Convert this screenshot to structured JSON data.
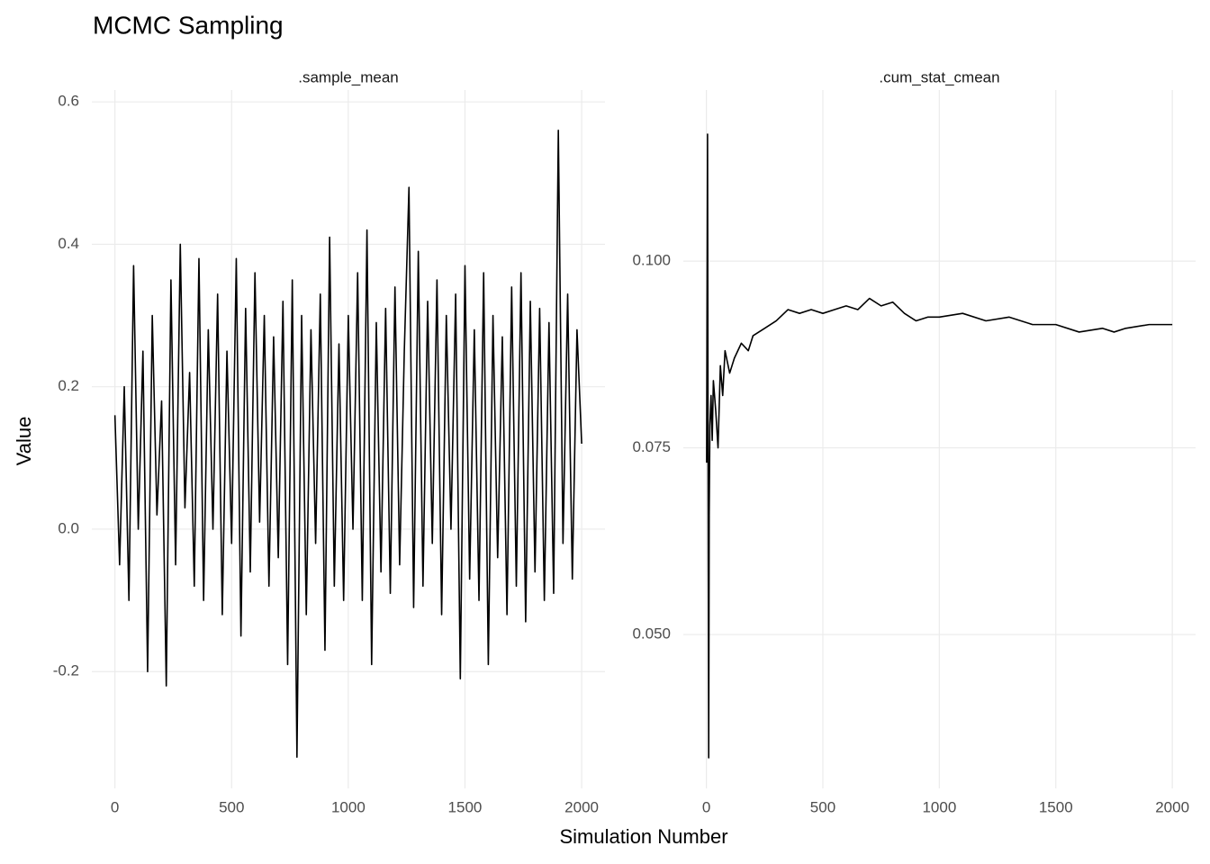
{
  "title": "MCMC Sampling",
  "x_label": "Simulation Number",
  "y_label": "Value",
  "chart_data": [
    {
      "type": "line",
      "title": ".sample_mean",
      "color": "#000000",
      "grid": true,
      "x": [
        0,
        20,
        40,
        60,
        80,
        100,
        120,
        140,
        160,
        180,
        200,
        220,
        240,
        260,
        280,
        300,
        320,
        340,
        360,
        380,
        400,
        420,
        440,
        460,
        480,
        500,
        520,
        540,
        560,
        580,
        600,
        620,
        640,
        660,
        680,
        700,
        720,
        740,
        760,
        780,
        800,
        820,
        840,
        860,
        880,
        900,
        920,
        940,
        960,
        980,
        1000,
        1020,
        1040,
        1060,
        1080,
        1100,
        1120,
        1140,
        1160,
        1180,
        1200,
        1220,
        1240,
        1260,
        1280,
        1300,
        1320,
        1340,
        1360,
        1380,
        1400,
        1420,
        1440,
        1460,
        1480,
        1500,
        1520,
        1540,
        1560,
        1580,
        1600,
        1620,
        1640,
        1660,
        1680,
        1700,
        1720,
        1740,
        1760,
        1780,
        1800,
        1820,
        1840,
        1860,
        1880,
        1900,
        1920,
        1940,
        1960,
        1980,
        2000
      ],
      "values": [
        0.16,
        -0.05,
        0.2,
        -0.1,
        0.37,
        0.0,
        0.25,
        -0.2,
        0.3,
        0.02,
        0.18,
        -0.22,
        0.35,
        -0.05,
        0.4,
        0.03,
        0.22,
        -0.08,
        0.38,
        -0.1,
        0.28,
        0.0,
        0.33,
        -0.12,
        0.25,
        -0.02,
        0.38,
        -0.15,
        0.31,
        -0.06,
        0.36,
        0.01,
        0.3,
        -0.08,
        0.27,
        -0.04,
        0.32,
        -0.19,
        0.35,
        -0.32,
        0.3,
        -0.12,
        0.28,
        -0.02,
        0.33,
        -0.17,
        0.41,
        -0.08,
        0.26,
        -0.1,
        0.3,
        0.0,
        0.36,
        -0.1,
        0.42,
        -0.19,
        0.29,
        -0.06,
        0.31,
        -0.09,
        0.34,
        -0.05,
        0.25,
        0.48,
        -0.11,
        0.39,
        -0.08,
        0.32,
        -0.02,
        0.35,
        -0.12,
        0.3,
        0.0,
        0.33,
        -0.21,
        0.37,
        -0.07,
        0.28,
        -0.1,
        0.36,
        -0.19,
        0.3,
        -0.04,
        0.27,
        -0.12,
        0.34,
        -0.08,
        0.36,
        -0.13,
        0.32,
        -0.06,
        0.31,
        -0.1,
        0.29,
        -0.09,
        0.56,
        -0.02,
        0.33,
        -0.07,
        0.28,
        0.12
      ],
      "xlim": [
        -99,
        2100
      ],
      "xticks": [
        0,
        500,
        1000,
        1500,
        2000
      ],
      "ylim": [
        -0.364,
        0.604
      ],
      "yticks": [
        -0.2,
        {
          "value": 0,
          "label": "0.0"
        },
        0.2,
        0.4,
        0.6
      ]
    },
    {
      "type": "line",
      "title": ".cum_stat_cmean",
      "color": "#000000",
      "grid": true,
      "x": [
        1,
        5,
        8,
        10,
        12,
        15,
        20,
        25,
        30,
        40,
        50,
        60,
        70,
        80,
        100,
        120,
        150,
        180,
        200,
        250,
        300,
        350,
        400,
        450,
        500,
        550,
        600,
        650,
        700,
        750,
        800,
        850,
        900,
        950,
        1000,
        1100,
        1200,
        1300,
        1400,
        1500,
        1600,
        1700,
        1750,
        1800,
        1900,
        2000
      ],
      "values": [
        0.073,
        0.117,
        0.06,
        0.0335,
        0.066,
        0.078,
        0.082,
        0.076,
        0.084,
        0.08,
        0.075,
        0.086,
        0.082,
        0.088,
        0.085,
        0.087,
        0.089,
        0.088,
        0.09,
        0.091,
        0.092,
        0.0935,
        0.093,
        0.0935,
        0.093,
        0.0935,
        0.094,
        0.0935,
        0.095,
        0.094,
        0.0945,
        0.093,
        0.092,
        0.0925,
        0.0925,
        0.093,
        0.092,
        0.0925,
        0.0915,
        0.0915,
        0.0905,
        0.091,
        0.0905,
        0.091,
        0.0915,
        0.0915
      ],
      "xlim": [
        -99,
        2100
      ],
      "xticks": [
        0,
        500,
        1000,
        1500,
        2000
      ],
      "ylim": [
        0.0294,
        0.1217
      ],
      "yticks": [
        {
          "value": 0.05,
          "label": "0.050"
        },
        {
          "value": 0.075,
          "label": "0.075"
        },
        {
          "value": 0.1,
          "label": "0.100"
        }
      ]
    }
  ]
}
